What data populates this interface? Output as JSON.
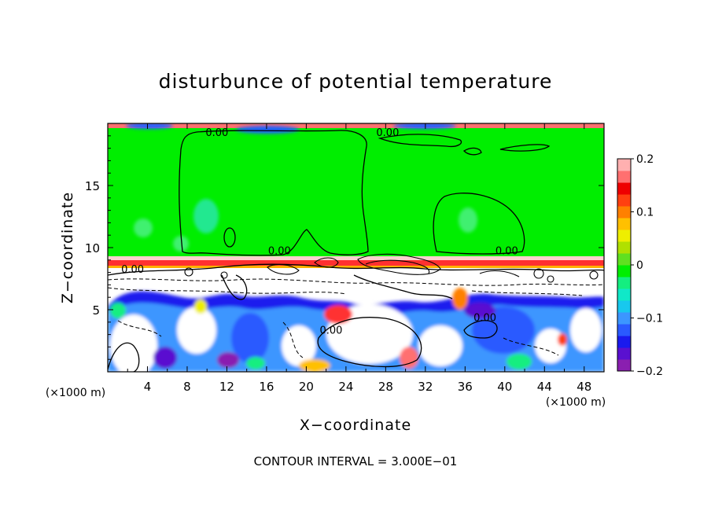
{
  "chart_data": {
    "type": "heatmap",
    "title": "disturbunce of potential temperature",
    "xlabel": "X−coordinate",
    "ylabel": "Z−coordinate",
    "x_unit_label": "(×1000 m)",
    "z_unit_label": "(×1000 m)",
    "xlim": [
      0,
      50
    ],
    "ylim": [
      0,
      20
    ],
    "x_ticks": [
      "4",
      "8",
      "12",
      "16",
      "20",
      "24",
      "28",
      "32",
      "36",
      "40",
      "44",
      "48"
    ],
    "x_tick_values": [
      4,
      8,
      12,
      16,
      20,
      24,
      28,
      32,
      36,
      40,
      44,
      48
    ],
    "y_ticks": [
      "5",
      "10",
      "15"
    ],
    "y_tick_values": [
      5,
      10,
      15
    ],
    "contour_interval_text": "CONTOUR INTERVAL = 3.000E−01",
    "contour_labels": [
      {
        "text": "0.00",
        "x": 11,
        "y": 19.1
      },
      {
        "text": "0.00",
        "x": 28.2,
        "y": 19.1
      },
      {
        "text": "0.00",
        "x": 17.3,
        "y": 9.6
      },
      {
        "text": "0.00",
        "x": 40.2,
        "y": 9.6
      },
      {
        "text": "0.00",
        "x": 2.5,
        "y": 8.1
      },
      {
        "text": "0.00",
        "x": 22.5,
        "y": 3.2
      },
      {
        "text": "0.00",
        "x": 38,
        "y": 4.2
      }
    ],
    "colorbar": {
      "range": [
        -0.2,
        0.2
      ],
      "tick_labels": [
        "0.2",
        "0.1",
        "0",
        "−0.1",
        "−0.2"
      ],
      "tick_values": [
        0.2,
        0.1,
        0,
        -0.1,
        -0.2
      ],
      "colors": [
        "#8a1fb0",
        "#5a10d0",
        "#1a1aee",
        "#2a5aff",
        "#3c96ff",
        "#18c8ee",
        "#10e8c8",
        "#14ee80",
        "#00ee00",
        "#60e020",
        "#b0e000",
        "#eeee00",
        "#ffc000",
        "#ff8000",
        "#ff4010",
        "#ee0000",
        "#ff7070",
        "#ffb0b0"
      ]
    },
    "regions": {
      "upper_layer": {
        "z_range": [
          9.6,
          19.6
        ],
        "value": 0.0,
        "color": "#00ee00"
      },
      "top_band": {
        "z_range": [
          19.6,
          20
        ],
        "value": 0.2,
        "color": "#ff7070"
      },
      "inversion_band": {
        "z_range": [
          8.9,
          9.6
        ],
        "value": 0.2,
        "color": "#ff3030"
      },
      "lower_layer": {
        "z_range": [
          0,
          8.9
        ],
        "value": -0.15,
        "color": "#1a1aee"
      }
    }
  }
}
